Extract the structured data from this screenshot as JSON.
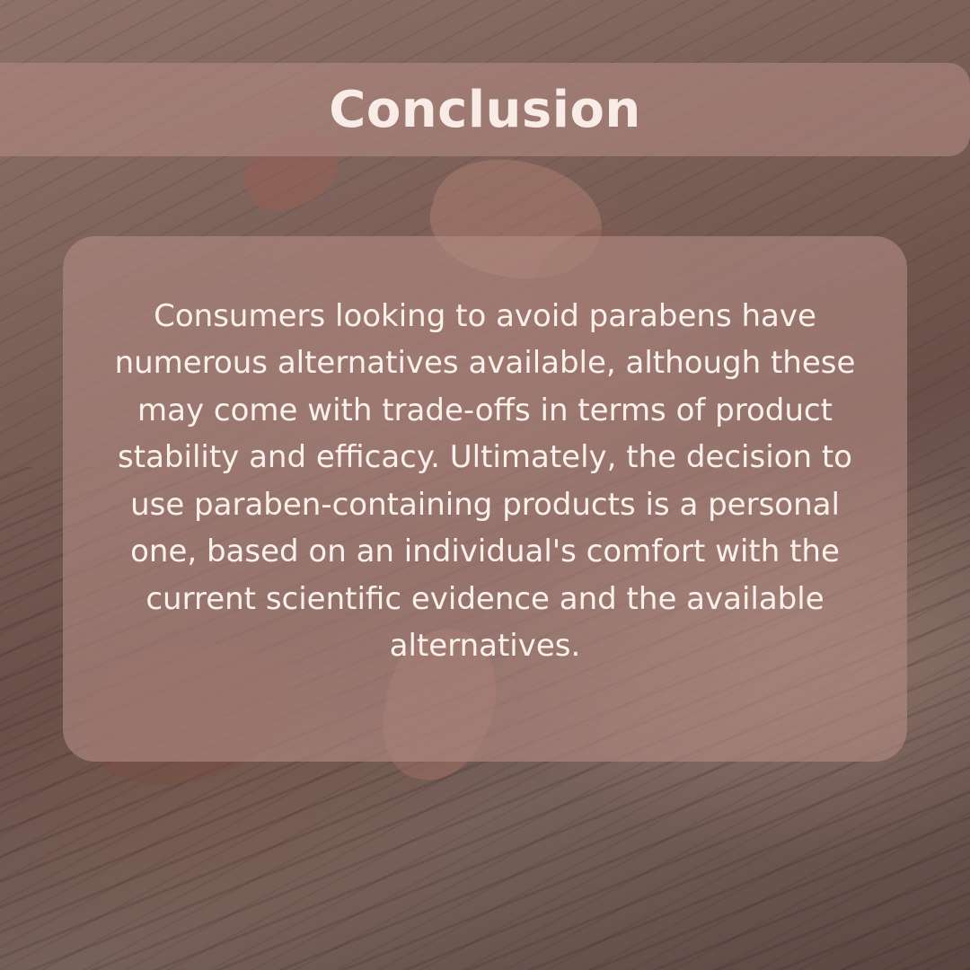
{
  "heading": "Conclusion",
  "body": "Consumers looking to avoid parabens have numerous alternatives available, although these may come with trade-offs in terms of product stability and efficacy. Ultimately, the decision to use paraben-containing products is a personal one, based on an individual's comfort with the current scientific evidence and the available alternatives.",
  "colors": {
    "text": "#fbf1ec",
    "panel": "#b08880",
    "background": "#7a5f58"
  }
}
